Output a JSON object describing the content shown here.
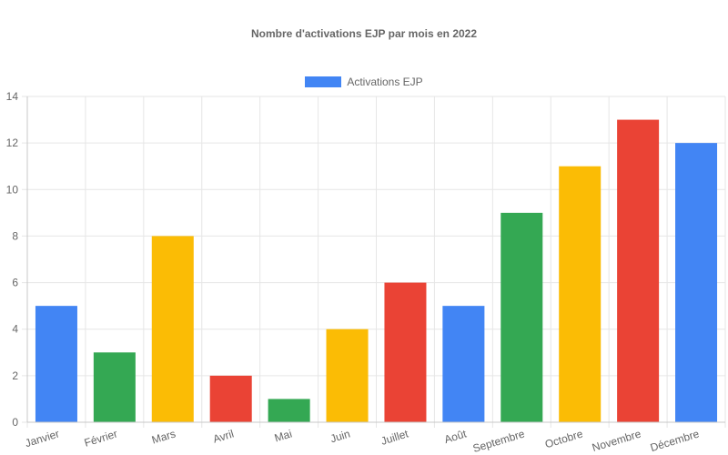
{
  "chart_data": {
    "type": "bar",
    "title": "Nombre d'activations EJP par mois en 2022",
    "categories": [
      "Janvier",
      "Février",
      "Mars",
      "Avril",
      "Mai",
      "Juin",
      "Juillet",
      "Août",
      "Septembre",
      "Octobre",
      "Novembre",
      "Décembre"
    ],
    "series": [
      {
        "name": "Activations EJP",
        "values": [
          5,
          3,
          8,
          2,
          1,
          4,
          6,
          5,
          9,
          11,
          13,
          12
        ]
      }
    ],
    "bar_colors": [
      "#4285F4",
      "#34A853",
      "#FBBC05",
      "#EA4335",
      "#34A853",
      "#FBBC05",
      "#EA4335",
      "#4285F4",
      "#34A853",
      "#FBBC05",
      "#EA4335",
      "#4285F4"
    ],
    "legend_color": "#4285F4",
    "ylim": [
      0,
      14
    ],
    "yticks": [
      0,
      2,
      4,
      6,
      8,
      10,
      12,
      14
    ],
    "grid": true,
    "legend_position": "top"
  }
}
